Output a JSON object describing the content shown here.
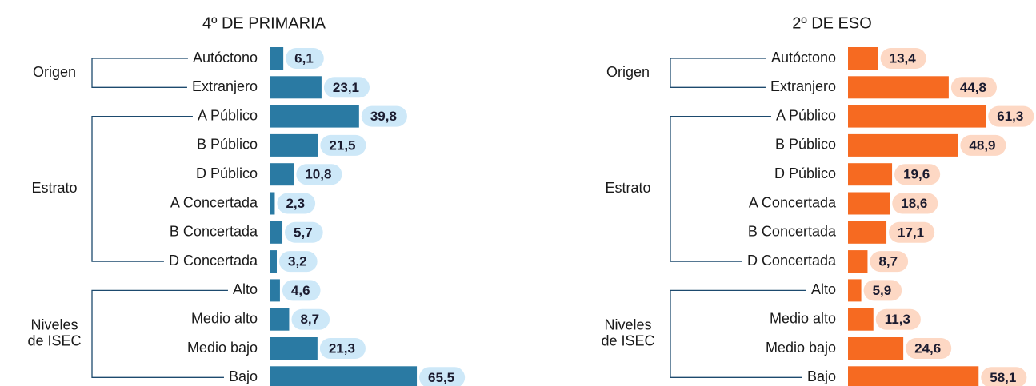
{
  "chart_data": [
    {
      "type": "bar",
      "title": "4º DE PRIMARIA",
      "color": "#2a7aa3",
      "label_background": "#cde8f8",
      "groups": [
        {
          "label": [
            "Origen"
          ],
          "categories": [
            "Autóctono",
            "Extranjero"
          ]
        },
        {
          "label": [
            "Estrato"
          ],
          "categories": [
            "A Público",
            "B Público",
            "D Público",
            "A Concertada",
            "B Concertada",
            "D Concertada"
          ]
        },
        {
          "label": [
            "Niveles",
            "de ISEC"
          ],
          "categories": [
            "Alto",
            "Medio alto",
            "Medio bajo",
            "Bajo"
          ]
        }
      ],
      "values": [
        6.1,
        23.1,
        39.8,
        21.5,
        10.8,
        2.3,
        5.7,
        3.2,
        4.6,
        8.7,
        21.3,
        65.5
      ],
      "value_labels": [
        "6,1",
        "23,1",
        "39,8",
        "21,5",
        "10,8",
        "2,3",
        "5,7",
        "3,2",
        "4,6",
        "8,7",
        "21,3",
        "65,5"
      ]
    },
    {
      "type": "bar",
      "title": "2º DE ESO",
      "color": "#f66a21",
      "label_background": "#fdd8c4",
      "groups": [
        {
          "label": [
            "Origen"
          ],
          "categories": [
            "Autóctono",
            "Extranjero"
          ]
        },
        {
          "label": [
            "Estrato"
          ],
          "categories": [
            "A Público",
            "B Público",
            "D Público",
            "A Concertada",
            "B Concertada",
            "D Concertada"
          ]
        },
        {
          "label": [
            "Niveles",
            "de ISEC"
          ],
          "categories": [
            "Alto",
            "Medio alto",
            "Medio bajo",
            "Bajo"
          ]
        }
      ],
      "values": [
        13.4,
        44.8,
        61.3,
        48.9,
        19.6,
        18.6,
        17.1,
        8.7,
        5.9,
        11.3,
        24.6,
        58.1
      ],
      "value_labels": [
        "13,4",
        "44,8",
        "61,3",
        "48,9",
        "19,6",
        "18,6",
        "17,1",
        "8,7",
        "5,9",
        "11,3",
        "24,6",
        "58,1"
      ]
    }
  ]
}
